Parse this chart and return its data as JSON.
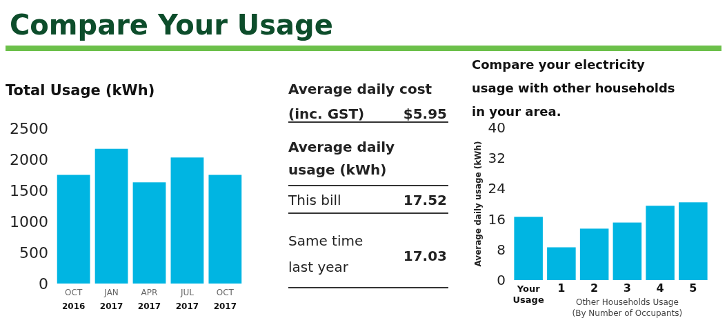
{
  "chart_data": [
    {
      "type": "other",
      "title": "Compare Your Usage"
    },
    {
      "type": "bar",
      "title": "Total Usage (kWh)",
      "categories": [
        "OCT 2016",
        "JAN 2017",
        "APR 2017",
        "JUL 2017",
        "OCT 2017"
      ],
      "values": [
        1750,
        2170,
        1630,
        2030,
        1750
      ],
      "color": "#00b5e2",
      "ylim": [
        0,
        2500
      ],
      "yticks": [
        0,
        500,
        1000,
        1500,
        2000,
        2500
      ],
      "grid": false
    },
    {
      "type": "other",
      "annotations": [
        "Average daily cost (inc. GST)",
        "$5.95",
        "Average daily usage (kWh)",
        "This bill",
        "17.52",
        "Same time last year",
        "17.03"
      ]
    },
    {
      "type": "bar",
      "title": "Compare your electricity usage with other households in your area.",
      "ylabel": "Average daily usage (kWh)",
      "xlabel": "Other Households Usage (By Number of Occupants)",
      "categories": [
        "Your Usage",
        "1",
        "2",
        "3",
        "4",
        "5"
      ],
      "values": [
        16.6,
        8.6,
        13.5,
        15.1,
        19.5,
        20.4
      ],
      "color": "#00b5e2",
      "ylim": [
        0,
        40
      ],
      "yticks": [
        0,
        8,
        16,
        24,
        32,
        40
      ],
      "grid": false
    }
  ]
}
